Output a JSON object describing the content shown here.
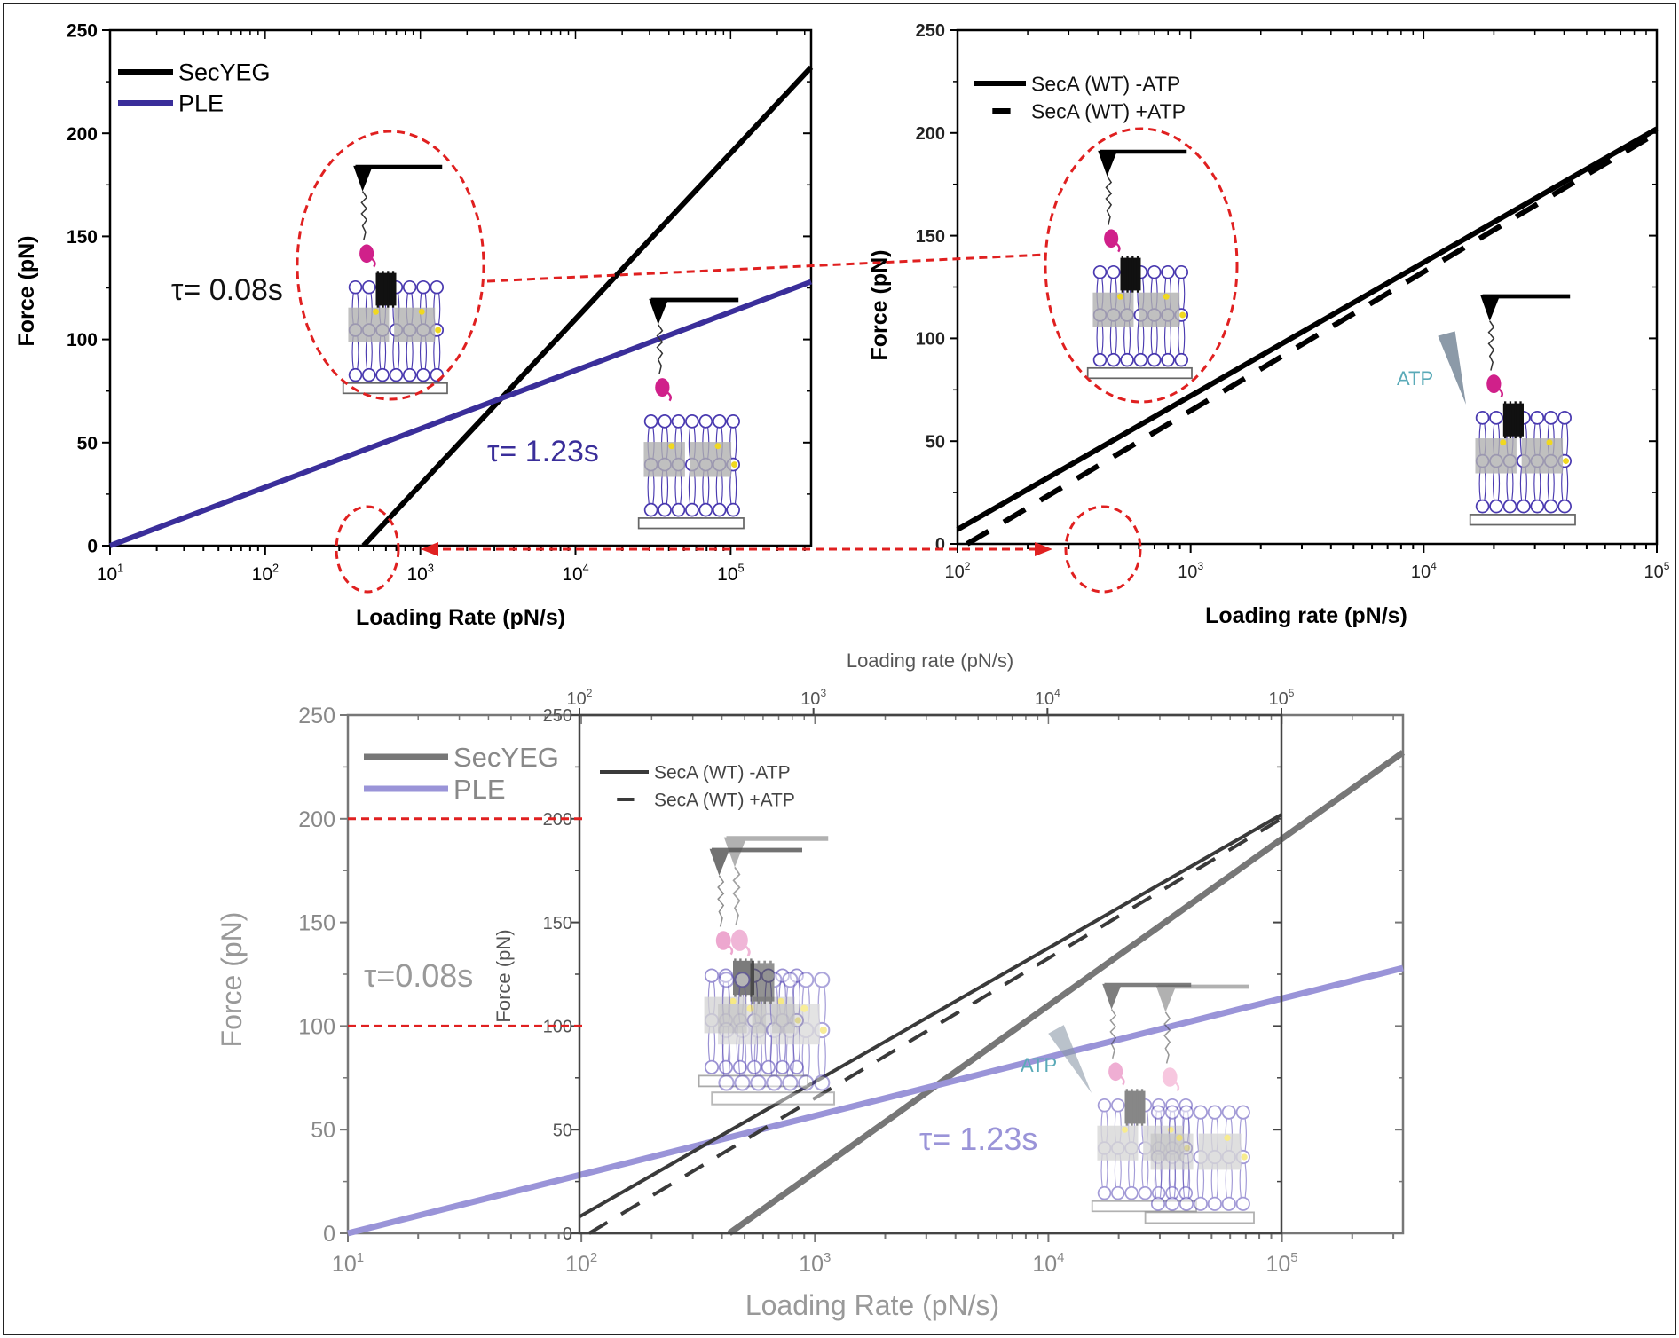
{
  "colors": {
    "annotation_red": "#e02020",
    "secyeg": "#000000",
    "ple": "#3a2e9a",
    "atp_text": "#5aaab8",
    "pink_protein": "#d0208a"
  },
  "chart_data": [
    {
      "type": "line",
      "xscale": "log",
      "xlabel": "Loading Rate (pN/s)",
      "ylabel": "Force (pN)",
      "xlim": [
        10,
        330000
      ],
      "ylim": [
        0,
        250
      ],
      "grid": false,
      "legend_position": "top-left",
      "yticks": [
        "0",
        "50",
        "100",
        "150",
        "200",
        "250"
      ],
      "xticks": [
        {
          "b": "10",
          "e": "1"
        },
        {
          "b": "10",
          "e": "2"
        },
        {
          "b": "10",
          "e": "3"
        },
        {
          "b": "10",
          "e": "4"
        },
        {
          "b": "10",
          "e": "5"
        }
      ],
      "series": [
        {
          "name": "SecYEG",
          "color": "#000000",
          "style": "solid",
          "points": [
            [
              430,
              0
            ],
            [
              330000,
              232
            ]
          ]
        },
        {
          "name": "PLE",
          "color": "#3a2e9a",
          "style": "solid",
          "points": [
            [
              10,
              0
            ],
            [
              330000,
              128
            ]
          ]
        }
      ],
      "annotations": [
        "τ= 0.08s",
        "τ= 1.23s"
      ]
    },
    {
      "type": "line",
      "xscale": "log",
      "xlabel": "Loading rate (pN/s)",
      "ylabel": "Force (pN)",
      "xlim": [
        100,
        100000
      ],
      "ylim": [
        0,
        250
      ],
      "grid": false,
      "legend_position": "top-left",
      "yticks": [
        "0",
        "50",
        "100",
        "150",
        "200",
        "250"
      ],
      "xticks": [
        {
          "b": "10",
          "e": "2"
        },
        {
          "b": "10",
          "e": "3"
        },
        {
          "b": "10",
          "e": "4"
        },
        {
          "b": "10",
          "e": "5"
        }
      ],
      "series": [
        {
          "name": "SecA (WT)  -ATP",
          "color": "#000000",
          "style": "solid",
          "points": [
            [
              100,
              7
            ],
            [
              100000,
              202
            ]
          ]
        },
        {
          "name": "SecA (WT) +ATP",
          "color": "#000000",
          "style": "dashed",
          "points": [
            [
              110,
              0
            ],
            [
              100000,
              200
            ]
          ]
        }
      ],
      "annotations": [
        "ATP"
      ]
    },
    {
      "type": "line",
      "xscale": "log",
      "overlay": true,
      "outer": {
        "xlabel": "Loading Rate (pN/s)",
        "ylabel": "Force (pN)",
        "xlim": [
          10,
          330000
        ],
        "ylim": [
          0,
          250
        ],
        "yticks": [
          "0",
          "50",
          "100",
          "150",
          "200",
          "250"
        ],
        "xticks": [
          {
            "b": "10",
            "e": "1"
          },
          {
            "b": "10",
            "e": "2"
          },
          {
            "b": "10",
            "e": "3"
          },
          {
            "b": "10",
            "e": "4"
          },
          {
            "b": "10",
            "e": "5"
          }
        ],
        "series": [
          {
            "name": "SecYEG",
            "color": "#777777",
            "style": "solid",
            "points": [
              [
                430,
                0
              ],
              [
                330000,
                232
              ]
            ]
          },
          {
            "name": "PLE",
            "color": "#9a94d8",
            "style": "solid",
            "points": [
              [
                10,
                0
              ],
              [
                330000,
                128
              ]
            ]
          }
        ],
        "annotations": [
          "τ=0.08s",
          "τ= 1.23s"
        ]
      },
      "inner": {
        "xlabel": "Loading rate (pN/s)",
        "ylabel": "Force (pN)",
        "xlim": [
          100,
          100000
        ],
        "ylim": [
          0,
          250
        ],
        "yticks": [
          "0",
          "50",
          "100",
          "150",
          "200",
          "250"
        ],
        "xticks": [
          {
            "b": "10",
            "e": "2"
          },
          {
            "b": "10",
            "e": "3"
          },
          {
            "b": "10",
            "e": "4"
          },
          {
            "b": "10",
            "e": "5"
          }
        ],
        "series": [
          {
            "name": "SecA (WT)  -ATP",
            "color": "#3a3a3a",
            "style": "solid",
            "points": [
              [
                100,
                8
              ],
              [
                100000,
                202
              ]
            ]
          },
          {
            "name": "SecA (WT) +ATP",
            "color": "#3a3a3a",
            "style": "dashed",
            "points": [
              [
                110,
                0
              ],
              [
                100000,
                200
              ]
            ]
          }
        ],
        "annotations": [
          "ATP"
        ]
      },
      "reference_lines_force": [
        200,
        100
      ]
    }
  ]
}
